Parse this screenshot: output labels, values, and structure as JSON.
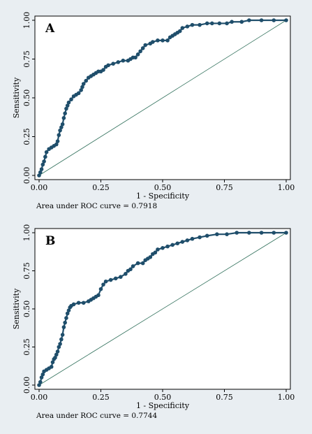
{
  "colors": {
    "background": "#e9eef2",
    "plot_bg": "#ffffff",
    "curve": "#1f4e6b",
    "diagonal": "#2f6f5a",
    "axis": "#000000"
  },
  "chart_data": [
    {
      "type": "line",
      "panel_label": "A",
      "xlabel": "1 - Specificity",
      "ylabel": "Sensitivity",
      "xlim": [
        0,
        1
      ],
      "ylim": [
        0,
        1
      ],
      "xticks": [
        "0.00",
        "0.25",
        "0.50",
        "0.75",
        "1.00"
      ],
      "yticks": [
        "0.00",
        "0.25",
        "0.50",
        "0.75",
        "1.00"
      ],
      "grid": false,
      "caption": "Area under ROC curve = 0.7918",
      "points": [
        [
          0.0,
          0.0
        ],
        [
          0.005,
          0.02
        ],
        [
          0.01,
          0.04
        ],
        [
          0.015,
          0.07
        ],
        [
          0.02,
          0.09
        ],
        [
          0.025,
          0.12
        ],
        [
          0.03,
          0.15
        ],
        [
          0.04,
          0.17
        ],
        [
          0.05,
          0.18
        ],
        [
          0.06,
          0.19
        ],
        [
          0.07,
          0.2
        ],
        [
          0.075,
          0.22
        ],
        [
          0.08,
          0.26
        ],
        [
          0.085,
          0.29
        ],
        [
          0.09,
          0.31
        ],
        [
          0.095,
          0.33
        ],
        [
          0.1,
          0.37
        ],
        [
          0.105,
          0.4
        ],
        [
          0.11,
          0.43
        ],
        [
          0.115,
          0.45
        ],
        [
          0.12,
          0.47
        ],
        [
          0.13,
          0.49
        ],
        [
          0.14,
          0.51
        ],
        [
          0.15,
          0.52
        ],
        [
          0.16,
          0.53
        ],
        [
          0.17,
          0.55
        ],
        [
          0.175,
          0.57
        ],
        [
          0.18,
          0.59
        ],
        [
          0.19,
          0.61
        ],
        [
          0.2,
          0.63
        ],
        [
          0.21,
          0.64
        ],
        [
          0.22,
          0.65
        ],
        [
          0.23,
          0.66
        ],
        [
          0.24,
          0.67
        ],
        [
          0.25,
          0.67
        ],
        [
          0.26,
          0.68
        ],
        [
          0.27,
          0.7
        ],
        [
          0.28,
          0.71
        ],
        [
          0.3,
          0.72
        ],
        [
          0.32,
          0.73
        ],
        [
          0.34,
          0.74
        ],
        [
          0.36,
          0.74
        ],
        [
          0.37,
          0.75
        ],
        [
          0.38,
          0.76
        ],
        [
          0.39,
          0.76
        ],
        [
          0.4,
          0.78
        ],
        [
          0.41,
          0.8
        ],
        [
          0.42,
          0.82
        ],
        [
          0.43,
          0.84
        ],
        [
          0.45,
          0.85
        ],
        [
          0.46,
          0.86
        ],
        [
          0.48,
          0.87
        ],
        [
          0.5,
          0.87
        ],
        [
          0.52,
          0.87
        ],
        [
          0.53,
          0.89
        ],
        [
          0.54,
          0.9
        ],
        [
          0.55,
          0.91
        ],
        [
          0.56,
          0.92
        ],
        [
          0.57,
          0.93
        ],
        [
          0.58,
          0.95
        ],
        [
          0.6,
          0.96
        ],
        [
          0.62,
          0.97
        ],
        [
          0.65,
          0.97
        ],
        [
          0.68,
          0.98
        ],
        [
          0.7,
          0.98
        ],
        [
          0.73,
          0.98
        ],
        [
          0.76,
          0.98
        ],
        [
          0.78,
          0.99
        ],
        [
          0.82,
          0.99
        ],
        [
          0.85,
          1.0
        ],
        [
          0.9,
          1.0
        ],
        [
          0.95,
          1.0
        ],
        [
          1.0,
          1.0
        ]
      ]
    },
    {
      "type": "line",
      "panel_label": "B",
      "xlabel": "1 - Specificity",
      "ylabel": "Sensitivity",
      "xlim": [
        0,
        1
      ],
      "ylim": [
        0,
        1
      ],
      "xticks": [
        "0.00",
        "0.25",
        "0.50",
        "0.75",
        "1.00"
      ],
      "yticks": [
        "0.00",
        "0.25",
        "0.50",
        "0.75",
        "1.00"
      ],
      "grid": false,
      "caption": "Area under ROC curve = 0.7744",
      "points": [
        [
          0.0,
          0.0
        ],
        [
          0.005,
          0.02
        ],
        [
          0.01,
          0.05
        ],
        [
          0.015,
          0.07
        ],
        [
          0.02,
          0.09
        ],
        [
          0.03,
          0.1
        ],
        [
          0.04,
          0.11
        ],
        [
          0.05,
          0.12
        ],
        [
          0.055,
          0.15
        ],
        [
          0.06,
          0.17
        ],
        [
          0.065,
          0.18
        ],
        [
          0.07,
          0.2
        ],
        [
          0.075,
          0.22
        ],
        [
          0.08,
          0.25
        ],
        [
          0.085,
          0.27
        ],
        [
          0.09,
          0.3
        ],
        [
          0.095,
          0.33
        ],
        [
          0.1,
          0.38
        ],
        [
          0.105,
          0.41
        ],
        [
          0.11,
          0.44
        ],
        [
          0.115,
          0.47
        ],
        [
          0.12,
          0.49
        ],
        [
          0.125,
          0.51
        ],
        [
          0.13,
          0.52
        ],
        [
          0.14,
          0.53
        ],
        [
          0.16,
          0.54
        ],
        [
          0.18,
          0.54
        ],
        [
          0.2,
          0.55
        ],
        [
          0.21,
          0.56
        ],
        [
          0.22,
          0.57
        ],
        [
          0.23,
          0.58
        ],
        [
          0.24,
          0.59
        ],
        [
          0.25,
          0.63
        ],
        [
          0.26,
          0.66
        ],
        [
          0.27,
          0.68
        ],
        [
          0.29,
          0.69
        ],
        [
          0.31,
          0.7
        ],
        [
          0.33,
          0.71
        ],
        [
          0.35,
          0.73
        ],
        [
          0.36,
          0.75
        ],
        [
          0.37,
          0.76
        ],
        [
          0.38,
          0.78
        ],
        [
          0.4,
          0.8
        ],
        [
          0.42,
          0.8
        ],
        [
          0.43,
          0.82
        ],
        [
          0.44,
          0.83
        ],
        [
          0.45,
          0.84
        ],
        [
          0.46,
          0.86
        ],
        [
          0.47,
          0.87
        ],
        [
          0.48,
          0.89
        ],
        [
          0.5,
          0.9
        ],
        [
          0.52,
          0.91
        ],
        [
          0.54,
          0.92
        ],
        [
          0.56,
          0.93
        ],
        [
          0.58,
          0.94
        ],
        [
          0.6,
          0.95
        ],
        [
          0.62,
          0.96
        ],
        [
          0.65,
          0.97
        ],
        [
          0.68,
          0.98
        ],
        [
          0.72,
          0.99
        ],
        [
          0.76,
          0.99
        ],
        [
          0.8,
          1.0
        ],
        [
          0.85,
          1.0
        ],
        [
          0.9,
          1.0
        ],
        [
          0.95,
          1.0
        ],
        [
          1.0,
          1.0
        ]
      ]
    }
  ]
}
